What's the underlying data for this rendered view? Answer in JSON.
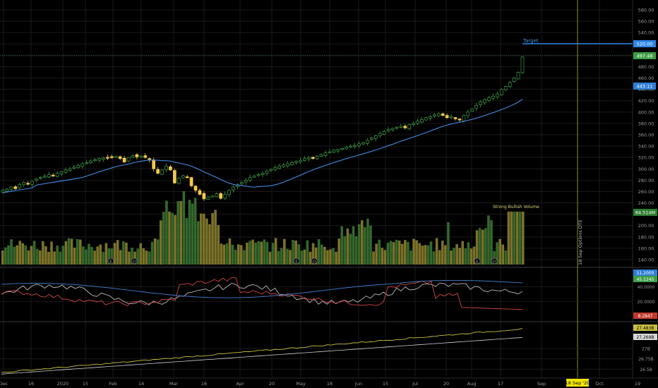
{
  "colors": {
    "background": "#000000",
    "grid": "#1a1a1a",
    "candle_up": "#3f9e48",
    "candle_down": "#f2c94c",
    "ma": "#3f7fd0",
    "target": "#2f86e8",
    "vline": "#8c8a3c",
    "vol_up": "#3d7a35",
    "vol_down": "#8f8630",
    "price_tag": "#3f9e48",
    "ma_tag": "#2f7fd6",
    "vol_tag": "#2e7d32",
    "dmi_plus": "#b9b9b9",
    "dmi_minus": "#d64545",
    "adx": "#3f7fd0",
    "ind_line": "#c9c040",
    "ind_base": "#cfcfcf",
    "date_tag": "#f2e600"
  },
  "price_axis": {
    "ticks": [
      "580.00",
      "560.00",
      "540.00",
      "520.00",
      "500.00",
      "480.00",
      "460.00",
      "440.00",
      "420.00",
      "400.00",
      "380.00",
      "360.00",
      "340.00",
      "320.00",
      "300.00",
      "280.00",
      "260.00",
      "240.00",
      "220.00",
      "200.00",
      "180.00",
      "160.00",
      "140.00"
    ],
    "price_tag": "497.48",
    "target_tag": "520.00",
    "ma_tag": "443.11",
    "volume_tag": "84.514M"
  },
  "annotations": {
    "target": "Target",
    "volume": "Strong Bullish Volume",
    "options_line": "18 Sep Options DTE"
  },
  "time_axis": {
    "labels": [
      "Dec",
      "16",
      "2020",
      "15",
      "Feb",
      "14",
      "Mar",
      "16",
      "Apr",
      "20",
      "May",
      "18",
      "Jun",
      "15",
      "Jul",
      "20",
      "Aug",
      "17",
      "Sep",
      "Oct",
      "19"
    ],
    "date_tag": "18 Sep '20"
  },
  "pane2": {
    "ticks": [
      "40.0000",
      "20.0000"
    ],
    "tags": [
      "51.2000",
      "45.2245",
      "8.2847"
    ]
  },
  "pane3": {
    "ticks": [
      "27B",
      "26.75B",
      "26.5B"
    ],
    "tags": [
      "27.483B",
      "27.269B"
    ]
  },
  "event_markers": [
    "E",
    "D",
    "E",
    "D",
    "E",
    "D"
  ],
  "chart_data": {
    "type": "candlestick",
    "series": [
      {
        "name": "price",
        "values": [
          262,
          264,
          268,
          265,
          272,
          276,
          274,
          278,
          282,
          285,
          287,
          290,
          288,
          292,
          295,
          298,
          300,
          303,
          306,
          309,
          311,
          314,
          316,
          318,
          319,
          320,
          321,
          322,
          318,
          312,
          320,
          323,
          321,
          322,
          320,
          315,
          300,
          292,
          298,
          305,
          298,
          275,
          283,
          288,
          285,
          270,
          262,
          255,
          247,
          250,
          252,
          256,
          248,
          255,
          262,
          268,
          272,
          276,
          280,
          285,
          287,
          290,
          292,
          296,
          299,
          302,
          305,
          307,
          309,
          311,
          313,
          315,
          318,
          320,
          318,
          322,
          325,
          328,
          330,
          333,
          334,
          336,
          338,
          340,
          341,
          344,
          346,
          350,
          354,
          358,
          362,
          366,
          369,
          371,
          373,
          375,
          372,
          378,
          380,
          384,
          387,
          390,
          392,
          395,
          397,
          394,
          390,
          392,
          388,
          386,
          394,
          400,
          405,
          412,
          418,
          422,
          425,
          428,
          432,
          440,
          445,
          452,
          460,
          470,
          497
        ]
      },
      {
        "name": "moving average",
        "values": []
      }
    ],
    "ylim": [
      130,
      590
    ]
  }
}
